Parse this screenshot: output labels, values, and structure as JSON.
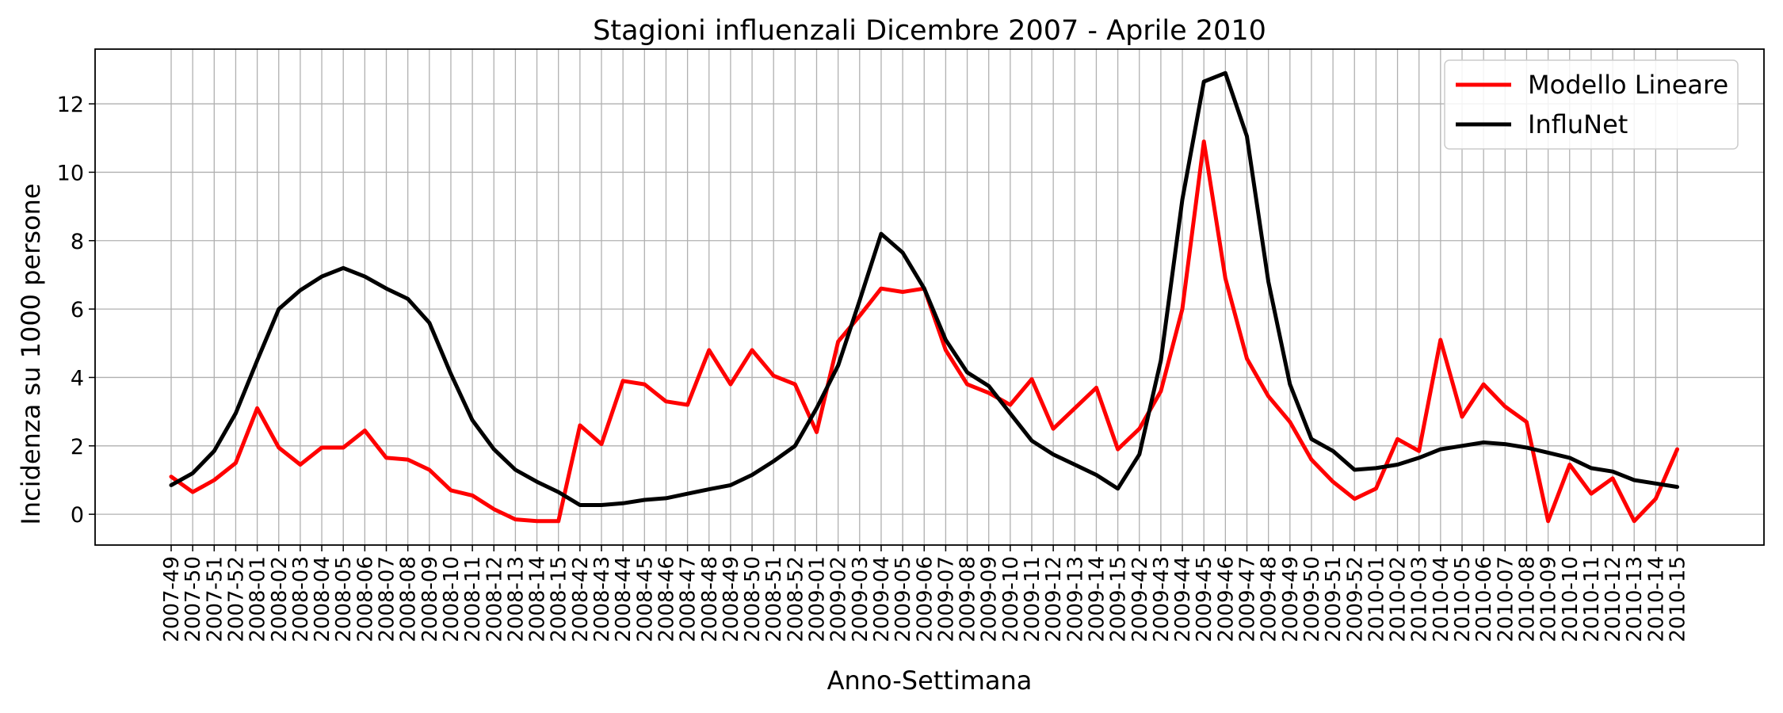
{
  "chart_data": {
    "type": "line",
    "title": "Stagioni influenzali Dicembre 2007 - Aprile 2010",
    "xlabel": "Anno-Settimana",
    "ylabel": "Incidenza su 1000 persone",
    "ylim": [
      -0.9,
      13.6
    ],
    "yticks": [
      0,
      2,
      4,
      6,
      8,
      10,
      12
    ],
    "grid": true,
    "legend_position": "top-right",
    "categories": [
      "2007-49",
      "2007-50",
      "2007-51",
      "2007-52",
      "2008-01",
      "2008-02",
      "2008-03",
      "2008-04",
      "2008-05",
      "2008-06",
      "2008-07",
      "2008-08",
      "2008-09",
      "2008-10",
      "2008-11",
      "2008-12",
      "2008-13",
      "2008-14",
      "2008-15",
      "2008-42",
      "2008-43",
      "2008-44",
      "2008-45",
      "2008-46",
      "2008-47",
      "2008-48",
      "2008-49",
      "2008-50",
      "2008-51",
      "2008-52",
      "2009-01",
      "2009-02",
      "2009-03",
      "2009-04",
      "2009-05",
      "2009-06",
      "2009-07",
      "2009-08",
      "2009-09",
      "2009-10",
      "2009-11",
      "2009-12",
      "2009-13",
      "2009-14",
      "2009-15",
      "2009-42",
      "2009-43",
      "2009-44",
      "2009-45",
      "2009-46",
      "2009-47",
      "2009-48",
      "2009-49",
      "2009-50",
      "2009-51",
      "2009-52",
      "2010-01",
      "2010-02",
      "2010-03",
      "2010-04",
      "2010-05",
      "2010-06",
      "2010-07",
      "2010-08",
      "2010-09",
      "2010-10",
      "2010-11",
      "2010-12",
      "2010-13",
      "2010-14",
      "2010-15"
    ],
    "series": [
      {
        "name": "Modello Lineare",
        "color": "#ff0000",
        "values": [
          1.1,
          0.65,
          1.0,
          1.5,
          3.1,
          1.95,
          1.45,
          1.95,
          1.95,
          2.45,
          1.65,
          1.6,
          1.3,
          0.7,
          0.55,
          0.15,
          -0.15,
          -0.2,
          -0.2,
          2.6,
          2.05,
          3.9,
          3.8,
          3.3,
          3.2,
          4.8,
          3.8,
          4.8,
          4.05,
          3.8,
          2.4,
          5.05,
          5.8,
          6.6,
          6.5,
          6.6,
          4.8,
          3.8,
          3.55,
          3.2,
          3.95,
          2.5,
          3.1,
          3.7,
          1.9,
          2.5,
          3.6,
          6.0,
          10.9,
          6.9,
          4.55,
          3.45,
          2.7,
          1.6,
          0.95,
          0.45,
          0.75,
          2.2,
          1.85,
          5.1,
          2.85,
          3.8,
          3.15,
          2.7,
          -0.2,
          1.45,
          0.6,
          1.05,
          -0.2,
          0.45,
          1.9
        ]
      },
      {
        "name": "InfluNet",
        "color": "#000000",
        "values": [
          0.85,
          1.2,
          1.85,
          2.95,
          4.5,
          6.0,
          6.55,
          6.95,
          7.2,
          6.95,
          6.6,
          6.3,
          5.6,
          4.1,
          2.75,
          1.9,
          1.3,
          0.95,
          0.65,
          0.27,
          0.27,
          0.32,
          0.42,
          0.47,
          0.6,
          0.73,
          0.85,
          1.15,
          1.55,
          2.0,
          3.1,
          4.35,
          6.25,
          8.2,
          7.65,
          6.6,
          5.1,
          4.15,
          3.75,
          2.95,
          2.15,
          1.75,
          1.45,
          1.15,
          0.75,
          1.75,
          4.5,
          9.2,
          12.65,
          12.9,
          11.05,
          6.8,
          3.8,
          2.2,
          1.85,
          1.3,
          1.35,
          1.45,
          1.65,
          1.9,
          2.0,
          2.1,
          2.05,
          1.95,
          1.8,
          1.65,
          1.35,
          1.25,
          1.0,
          0.9,
          0.8
        ]
      }
    ]
  }
}
